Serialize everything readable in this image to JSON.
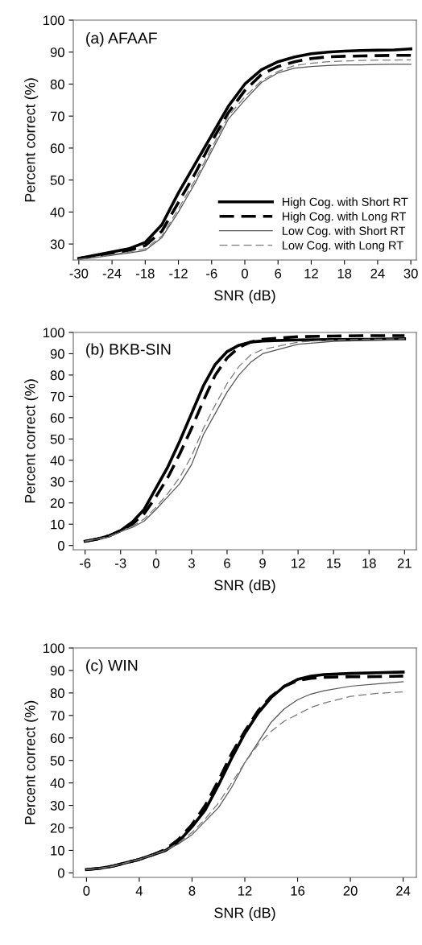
{
  "chart_data": [
    {
      "type": "line",
      "title": "(a) AFAAF",
      "xlabel": "SNR (dB)",
      "ylabel": "Percent correct (%)",
      "x": [
        -30,
        -27,
        -24,
        -21,
        -18,
        -15,
        -12,
        -9,
        -6,
        -3,
        0,
        3,
        6,
        9,
        12,
        15,
        18,
        21,
        24,
        27,
        30
      ],
      "xlim": [
        -31,
        31
      ],
      "xticks": [
        -30,
        -24,
        -18,
        -12,
        -6,
        0,
        6,
        12,
        18,
        24,
        30
      ],
      "ylim": [
        25,
        100
      ],
      "yticks": [
        30,
        40,
        50,
        60,
        70,
        80,
        90,
        100
      ],
      "legend": "bottom right",
      "grid": false,
      "series": [
        {
          "name": "High Cog. with Short RT",
          "color": "#000000",
          "line_style": "solid",
          "values": [
            25.5,
            26.5,
            27.5,
            28.5,
            30.5,
            36,
            46,
            55,
            64,
            73,
            80,
            84.5,
            87,
            88.5,
            89.5,
            90,
            90.3,
            90.5,
            90.6,
            90.7,
            91
          ]
        },
        {
          "name": "High Cog. with Long RT",
          "color": "#000000",
          "line_style": "dashed",
          "values": [
            25.5,
            26.3,
            27.2,
            28,
            29.5,
            34,
            43,
            52,
            62,
            71,
            78,
            83,
            85.5,
            87,
            88,
            88.5,
            88.7,
            88.8,
            88.9,
            89,
            89
          ]
        },
        {
          "name": "Low Cog. with Short RT",
          "color": "#555555",
          "line_style": "solid",
          "values": [
            25.2,
            25.8,
            26.5,
            27.2,
            28,
            32,
            40,
            49,
            59,
            69,
            75,
            80.5,
            83.5,
            85,
            85.5,
            85.8,
            86,
            86,
            86.1,
            86.2,
            86.2
          ]
        },
        {
          "name": "Low Cog. with Long RT",
          "color": "#777777",
          "line_style": "dashed",
          "values": [
            25.2,
            25.9,
            26.7,
            27.5,
            28.5,
            32.5,
            41,
            50,
            60,
            70,
            76,
            81,
            84,
            85.8,
            86.5,
            87,
            87.2,
            87.4,
            87.5,
            87.5,
            87.6
          ]
        }
      ]
    },
    {
      "type": "line",
      "title": "(b) BKB-SIN",
      "xlabel": "SNR (dB)",
      "ylabel": "Percent correct (%)",
      "x": [
        -6,
        -5,
        -4,
        -3,
        -2,
        -1,
        0,
        1,
        2,
        3,
        4,
        5,
        6,
        7,
        8,
        9,
        12,
        15,
        18,
        21
      ],
      "xlim": [
        -7,
        22
      ],
      "xticks": [
        -6,
        -3,
        0,
        3,
        6,
        9,
        12,
        15,
        18,
        21
      ],
      "ylim": [
        -2,
        100
      ],
      "yticks": [
        0,
        10,
        20,
        30,
        40,
        50,
        60,
        70,
        80,
        90,
        100
      ],
      "grid": false,
      "series": [
        {
          "color": "#000000",
          "line_style": "solid",
          "values": [
            2,
            3,
            4.5,
            7,
            11,
            17,
            27,
            37,
            49,
            62,
            75,
            85,
            91,
            94,
            95.5,
            96,
            96.5,
            96.7,
            96.8,
            97
          ]
        },
        {
          "color": "#000000",
          "line_style": "dashed",
          "values": [
            2,
            3,
            4.5,
            7,
            10,
            15,
            23,
            32,
            43,
            55,
            68,
            80,
            88,
            93,
            95.5,
            96.8,
            98,
            98.3,
            98.5,
            98.5
          ]
        },
        {
          "color": "#555555",
          "line_style": "solid",
          "values": [
            2,
            3,
            4,
            6.5,
            8.5,
            11.5,
            17,
            23,
            29,
            38,
            52,
            62,
            72,
            80,
            86,
            90,
            94.5,
            95.8,
            96.3,
            96.5
          ]
        },
        {
          "color": "#777777",
          "line_style": "dashed",
          "values": [
            2,
            3,
            4.2,
            6.5,
            9,
            12.5,
            18,
            24.5,
            32,
            42,
            55,
            66,
            76,
            84,
            89.5,
            92,
            95.5,
            96.5,
            96.8,
            97
          ]
        }
      ]
    },
    {
      "type": "line",
      "title": "(c) WIN",
      "xlabel": "SNR (dB)",
      "ylabel": "Percent correct (%)",
      "x": [
        0,
        1,
        2,
        3,
        4,
        5,
        6,
        7,
        8,
        9,
        10,
        11,
        12,
        13,
        14,
        15,
        16,
        17,
        18,
        20,
        22,
        24
      ],
      "xlim": [
        -1,
        25
      ],
      "xticks": [
        0,
        4,
        8,
        12,
        16,
        20,
        24
      ],
      "ylim": [
        -2,
        100
      ],
      "yticks": [
        0,
        10,
        20,
        30,
        40,
        50,
        60,
        70,
        80,
        90,
        100
      ],
      "grid": false,
      "series": [
        {
          "color": "#000000",
          "line_style": "solid",
          "values": [
            1.5,
            2,
            3,
            4.5,
            6,
            8,
            10,
            14,
            20.5,
            28,
            39,
            51,
            62,
            71,
            78,
            83,
            86,
            87.5,
            88.2,
            88.7,
            89,
            89.3
          ]
        },
        {
          "color": "#000000",
          "line_style": "dashed",
          "values": [
            1.5,
            2,
            3,
            4.5,
            6,
            8,
            10.5,
            15,
            21.5,
            30,
            41,
            53,
            63,
            72,
            78.5,
            83,
            85.5,
            86.5,
            87,
            87.2,
            87.3,
            87.5
          ]
        },
        {
          "color": "#555555",
          "line_style": "solid",
          "values": [
            1.5,
            2,
            3,
            4.5,
            6,
            8,
            10,
            13,
            17,
            23,
            29,
            38,
            49,
            58,
            67,
            73,
            77,
            79.5,
            81,
            83,
            84,
            85
          ]
        },
        {
          "color": "#777777",
          "line_style": "dashed",
          "values": [
            1.5,
            2,
            3,
            4.5,
            6,
            8,
            10,
            13.5,
            18,
            24,
            31,
            40,
            49,
            57,
            63,
            67.5,
            70.5,
            73.5,
            75.5,
            78.5,
            79.8,
            80.5
          ]
        }
      ]
    }
  ]
}
